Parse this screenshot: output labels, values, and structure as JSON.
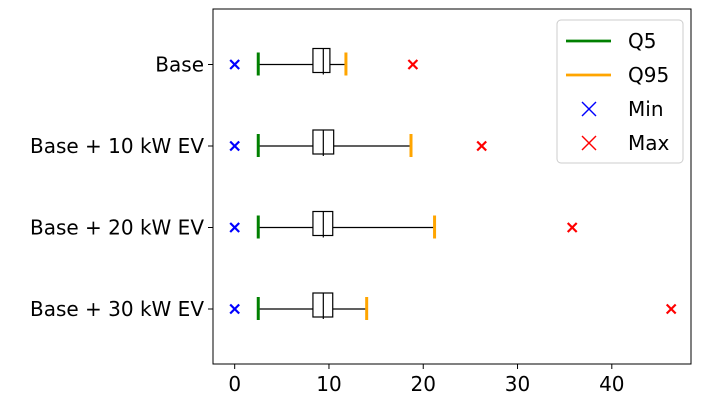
{
  "chart_data": {
    "type": "box",
    "orientation": "horizontal",
    "categories": [
      "Base",
      "Base + 10 kW EV",
      "Base + 20 kW EV",
      "Base + 30 kW EV"
    ],
    "boxes": [
      {
        "q1": 8.3,
        "median": 9.4,
        "q3": 10.1,
        "whisker_low": 2.5,
        "whisker_high": 11.8,
        "q5": 2.5,
        "q95": 11.8,
        "min": 0.0,
        "max": 18.9
      },
      {
        "q1": 8.3,
        "median": 9.4,
        "q3": 10.5,
        "whisker_low": 2.5,
        "whisker_high": 18.7,
        "q5": 2.5,
        "q95": 18.7,
        "min": 0.0,
        "max": 26.2
      },
      {
        "q1": 8.3,
        "median": 9.4,
        "q3": 10.4,
        "whisker_low": 2.5,
        "whisker_high": 21.2,
        "q5": 2.5,
        "q95": 21.2,
        "min": 0.0,
        "max": 35.8
      },
      {
        "q1": 8.3,
        "median": 9.4,
        "q3": 10.4,
        "whisker_low": 2.5,
        "whisker_high": 14.0,
        "q5": 2.5,
        "q95": 14.0,
        "min": 0.0,
        "max": 46.3
      }
    ],
    "xlim": [
      -2.3,
      48.4
    ],
    "xticks": [
      0,
      10,
      20,
      30,
      40
    ],
    "grid": false,
    "legend_position": "top-right",
    "legend": [
      {
        "label": "Q5",
        "marker": "line",
        "color": "#008000"
      },
      {
        "label": "Q95",
        "marker": "line",
        "color": "#ffa500"
      },
      {
        "label": "Min",
        "marker": "x",
        "color": "#0000ff"
      },
      {
        "label": "Max",
        "marker": "x",
        "color": "#ff0000"
      }
    ],
    "colors": {
      "box": "#000000",
      "q5": "#008000",
      "q95": "#ffa500",
      "min": "#0000ff",
      "max": "#ff0000"
    }
  }
}
